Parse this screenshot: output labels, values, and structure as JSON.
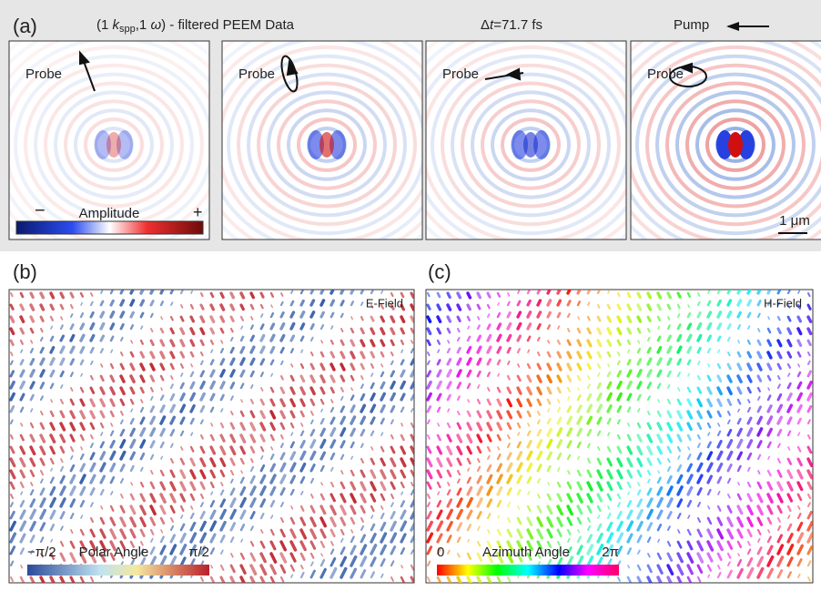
{
  "panel_a": {
    "label": "(a)",
    "title_parts": [
      "(1 ",
      "k",
      "spp",
      ",1 ",
      "ω",
      ") - filtered PEEM Data"
    ],
    "delay_parts": [
      "Δ",
      "t",
      "=71.7 fs"
    ],
    "pump": "Pump",
    "images": [
      {
        "probe": "Probe"
      },
      {
        "probe": "Probe"
      },
      {
        "probe": "Probe"
      },
      {
        "probe": "Probe"
      }
    ],
    "colorbar": {
      "min": "−",
      "label": "Amplitude",
      "max": "+"
    },
    "scale_bar": "1 μm"
  },
  "panel_b": {
    "label": "(b)",
    "field": "E-Field",
    "colorbar": {
      "min": "−π/2",
      "label": "Polar Angle",
      "max": "π/2"
    }
  },
  "panel_c": {
    "label": "(c)",
    "field": "H-Field",
    "colorbar": {
      "min": "0",
      "label": "Azimuth Angle",
      "max": "2π"
    }
  }
}
